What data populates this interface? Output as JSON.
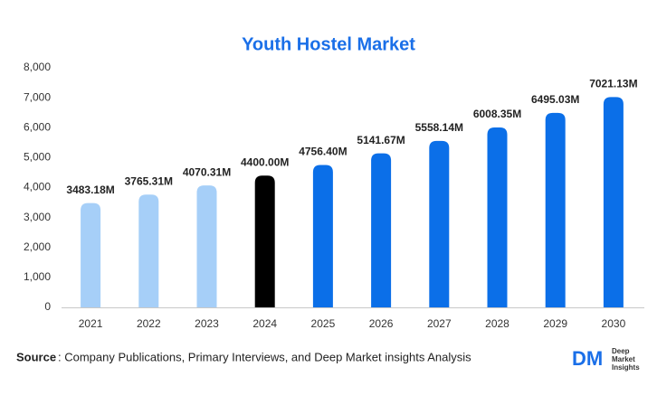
{
  "chart_data": {
    "type": "bar",
    "title": "Youth Hostel Market",
    "categories": [
      "2021",
      "2022",
      "2023",
      "2024",
      "2025",
      "2026",
      "2027",
      "2028",
      "2029",
      "2030"
    ],
    "values": [
      3483.18,
      3765.31,
      4070.31,
      4400.0,
      4756.4,
      5141.67,
      5558.14,
      6008.35,
      6495.03,
      7021.13
    ],
    "value_labels": [
      "3483.18M",
      "3765.31M",
      "4070.31M",
      "4400.00M",
      "4756.40M",
      "5141.67M",
      "5558.14M",
      "6008.35M",
      "6495.03M",
      "7021.13M"
    ],
    "colors": [
      "#a6cff8",
      "#a6cff8",
      "#a6cff8",
      "#000000",
      "#0b6fe8",
      "#0b6fe8",
      "#0b6fe8",
      "#0b6fe8",
      "#0b6fe8",
      "#0b6fe8"
    ],
    "ylim": [
      0,
      8000
    ],
    "yticks": [
      0,
      {
        "value": 1000,
        "label": "1,000"
      },
      {
        "value": 2000,
        "label": "2,000"
      },
      {
        "value": 3000,
        "label": "3,000"
      },
      {
        "value": 4000,
        "label": "4,000"
      },
      {
        "value": 5000,
        "label": "5,000"
      },
      {
        "value": 6000,
        "label": "6,000"
      },
      {
        "value": 7000,
        "label": "7,000"
      },
      {
        "value": 8000,
        "label": "8,000"
      }
    ],
    "grid": false
  },
  "source": {
    "label": "Source",
    "text": ": Company Publications, Primary Interviews, and Deep Market insights Analysis"
  },
  "logo": {
    "mark": "DM",
    "lines": [
      "Deep",
      "Market",
      "Insights"
    ]
  }
}
